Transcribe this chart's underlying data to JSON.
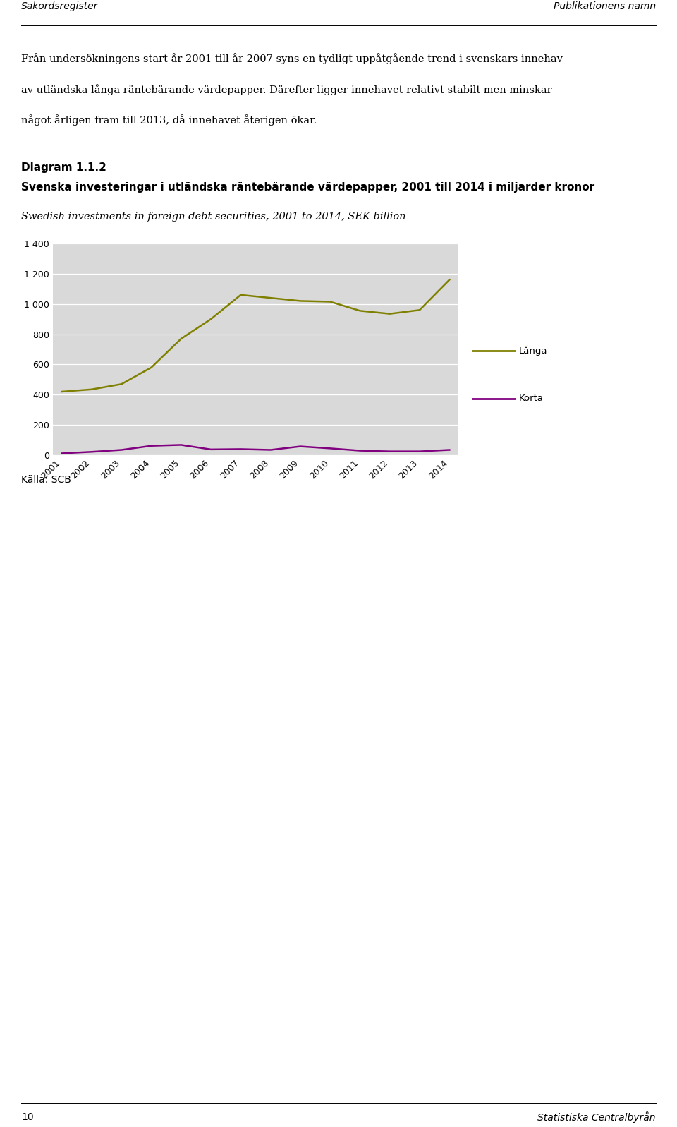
{
  "years": [
    2001,
    2002,
    2003,
    2004,
    2005,
    2006,
    2007,
    2008,
    2009,
    2010,
    2011,
    2012,
    2013,
    2014
  ],
  "langa": [
    420,
    435,
    470,
    580,
    770,
    900,
    1060,
    1040,
    1020,
    1015,
    955,
    935,
    960,
    1160
  ],
  "korta": [
    12,
    22,
    35,
    62,
    68,
    38,
    40,
    35,
    58,
    45,
    30,
    25,
    25,
    35
  ],
  "langa_color": "#808000",
  "korta_color": "#800080",
  "plot_bg_color": "#d9d9d9",
  "ylim": [
    0,
    1400
  ],
  "yticks": [
    0,
    200,
    400,
    600,
    800,
    1000,
    1200,
    1400
  ],
  "header_left": "Sakordsregister",
  "header_right": "Publikationens namn",
  "title_bold1": "Diagram 1.1.2",
  "title_bold2": "Svenska investeringar i utländska räntebärande värdepapper, 2001 till 2014 i miljarder kronor",
  "title_italic": "Swedish investments in foreign debt securities, 2001 to 2014, SEK billion",
  "body_text_line1": "Från undersökningens start år 2001 till år 2007 syns en tydligt uppåtgående trend i svenskars innehav",
  "body_text_line2": "av utländska långa räntebärande värdepapper. Därefter ligger innehavet relativt stabilt men minskar",
  "body_text_line3": "något årligen fram till 2013, då innehavet återigen ökar.",
  "legend_langa": "Långa",
  "legend_korta": "Korta",
  "footer_text": "Källa: SCB",
  "footer_bottom_left": "10",
  "footer_bottom_right": "Statistiska Centralbyrån"
}
